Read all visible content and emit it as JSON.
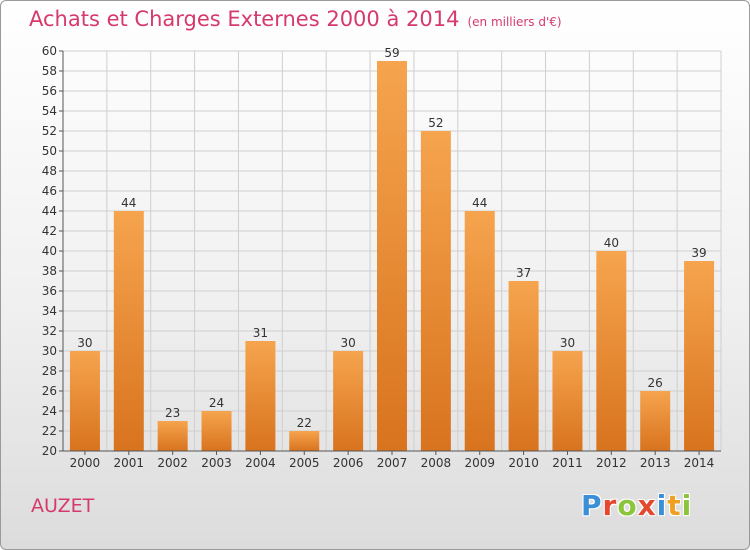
{
  "title": "Achats et Charges Externes 2000 à 2014",
  "subtitle": "(en milliers d'€)",
  "commune": "AUZET",
  "logo": {
    "letters": [
      "P",
      "r",
      "o",
      "x",
      "i",
      "t",
      "i"
    ],
    "colors": [
      "#3a8fd6",
      "#e4482e",
      "#8cc43c",
      "#e4482e",
      "#3a8fd6",
      "#f0a020",
      "#8cc43c"
    ]
  },
  "colors": {
    "bar_light": "#f6a44e",
    "bar_dark": "#d8731e",
    "grid": "#cfcfcf",
    "axis": "#555555",
    "title": "#d63a6c"
  },
  "chart_data": {
    "type": "bar",
    "title": "Achats et Charges Externes 2000 à 2014",
    "subtitle": "(en milliers d'€)",
    "categories": [
      "2000",
      "2001",
      "2002",
      "2003",
      "2004",
      "2005",
      "2006",
      "2007",
      "2008",
      "2009",
      "2010",
      "2011",
      "2012",
      "2013",
      "2014"
    ],
    "values": [
      30,
      44,
      23,
      24,
      31,
      22,
      30,
      59,
      52,
      44,
      37,
      30,
      40,
      26,
      39
    ],
    "xlabel": "",
    "ylabel": "",
    "ylim": [
      20,
      60
    ],
    "ytick_step": 2,
    "grid": true,
    "data_labels": true
  }
}
